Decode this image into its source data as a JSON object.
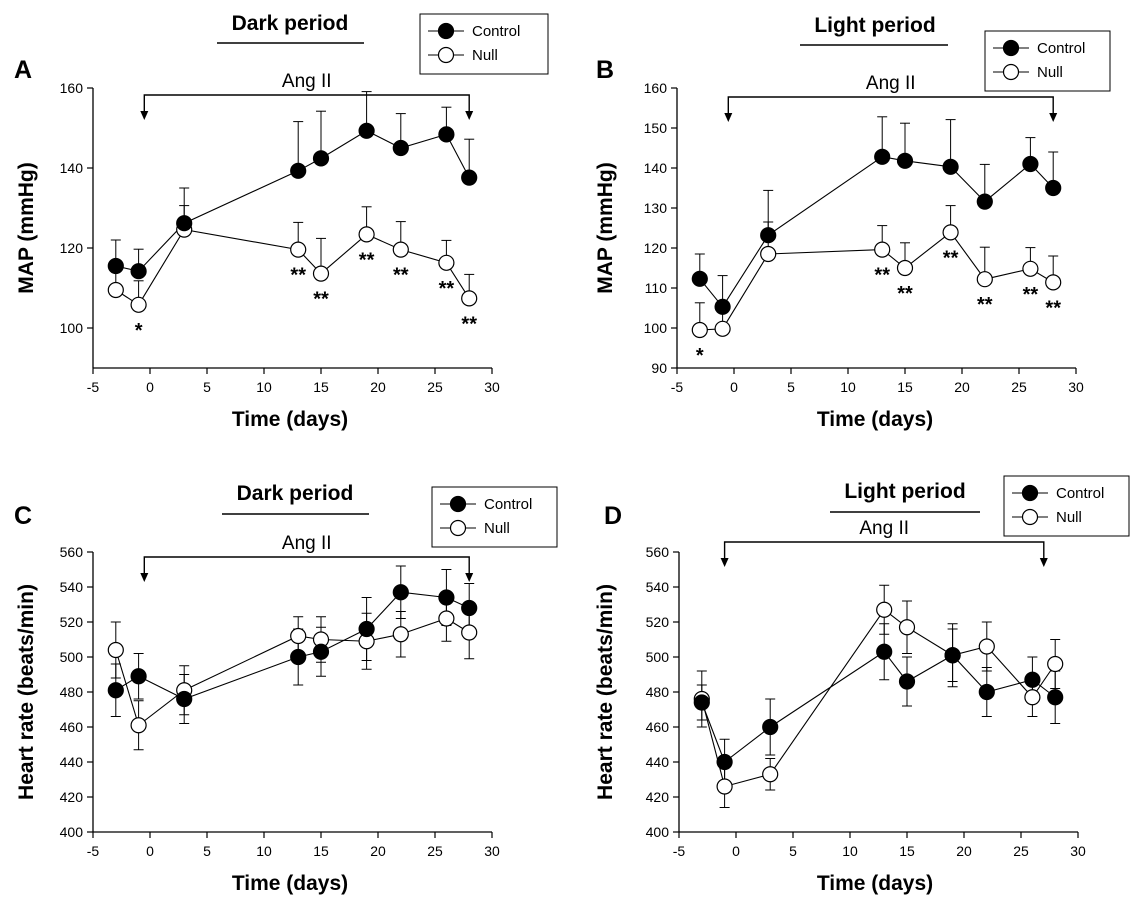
{
  "chart_data": [
    {
      "type": "line",
      "panel_label": "A",
      "title": "Dark period",
      "annotation": "Ang II",
      "annotation_range": [
        -0.5,
        28
      ],
      "xlabel": "Time (days)",
      "ylabel": "MAP (mmHg)",
      "xlim": [
        -5,
        30
      ],
      "ylim": [
        90,
        160
      ],
      "xticks": [
        -5,
        0,
        5,
        10,
        15,
        20,
        25,
        30
      ],
      "yticks": [
        100,
        120,
        140,
        160
      ],
      "legend_position": "top-right",
      "series": [
        {
          "name": "Control",
          "marker": "filled",
          "x": [
            -3,
            -1,
            3,
            13,
            15,
            19,
            22,
            26,
            28
          ],
          "y": [
            115.5,
            114.2,
            126.2,
            139.3,
            142.4,
            149.3,
            145.0,
            148.4,
            137.6
          ],
          "err": [
            6.5,
            5.5,
            8.8,
            12.3,
            11.8,
            9.8,
            8.6,
            6.8,
            9.6
          ]
        },
        {
          "name": "Null",
          "marker": "open",
          "x": [
            -3,
            -1,
            3,
            13,
            15,
            19,
            22,
            26,
            28
          ],
          "y": [
            109.5,
            105.8,
            124.6,
            119.6,
            113.6,
            123.4,
            119.6,
            116.3,
            107.4
          ],
          "err": [
            4.8,
            6.0,
            6.0,
            6.8,
            8.8,
            6.9,
            7.0,
            5.6,
            6.0
          ]
        }
      ],
      "significance": [
        {
          "x": -1,
          "label": "*"
        },
        {
          "x": 13,
          "label": "**"
        },
        {
          "x": 15,
          "label": "**"
        },
        {
          "x": 19,
          "label": "**"
        },
        {
          "x": 22,
          "label": "**"
        },
        {
          "x": 26,
          "label": "**"
        },
        {
          "x": 28,
          "label": "**"
        }
      ]
    },
    {
      "type": "line",
      "panel_label": "B",
      "title": "Light period",
      "annotation": "Ang II",
      "annotation_range": [
        -0.5,
        28
      ],
      "xlabel": "Time (days)",
      "ylabel": "MAP (mmHg)",
      "xlim": [
        -5,
        30
      ],
      "ylim": [
        90,
        160
      ],
      "xticks": [
        -5,
        0,
        5,
        10,
        15,
        20,
        25,
        30
      ],
      "yticks": [
        90,
        100,
        110,
        120,
        130,
        140,
        150,
        160
      ],
      "legend_position": "top-right",
      "series": [
        {
          "name": "Control",
          "marker": "filled",
          "x": [
            -3,
            -1,
            3,
            13,
            15,
            19,
            22,
            26,
            28
          ],
          "y": [
            112.3,
            105.3,
            123.2,
            142.8,
            141.8,
            140.3,
            131.6,
            141.0,
            135.0
          ],
          "err": [
            6.2,
            7.8,
            11.2,
            10.0,
            9.4,
            11.8,
            9.3,
            6.6,
            9.0
          ]
        },
        {
          "name": "Null",
          "marker": "open",
          "x": [
            -3,
            -1,
            3,
            13,
            15,
            19,
            22,
            26,
            28
          ],
          "y": [
            99.5,
            99.8,
            118.5,
            119.6,
            115.0,
            123.9,
            112.2,
            114.8,
            111.4
          ],
          "err": [
            6.8,
            7.0,
            8.0,
            6.0,
            6.3,
            6.7,
            8.0,
            5.3,
            6.6
          ]
        }
      ],
      "significance": [
        {
          "x": -3,
          "label": "*"
        },
        {
          "x": 13,
          "label": "**"
        },
        {
          "x": 15,
          "label": "**"
        },
        {
          "x": 19,
          "label": "**"
        },
        {
          "x": 22,
          "label": "**"
        },
        {
          "x": 26,
          "label": "**"
        },
        {
          "x": 28,
          "label": "**"
        }
      ]
    },
    {
      "type": "line",
      "panel_label": "C",
      "title": "Dark period",
      "annotation": "Ang II",
      "annotation_range": [
        -0.5,
        28
      ],
      "xlabel": "Time (days)",
      "ylabel": "Heart rate (beats/min)",
      "xlim": [
        -5,
        30
      ],
      "ylim": [
        400,
        560
      ],
      "xticks": [
        -5,
        0,
        5,
        10,
        15,
        20,
        25,
        30
      ],
      "yticks": [
        400,
        420,
        440,
        460,
        480,
        500,
        520,
        540,
        560
      ],
      "legend_position": "top-right",
      "series": [
        {
          "name": "Control",
          "marker": "filled",
          "x": [
            -3,
            -1,
            3,
            13,
            15,
            19,
            22,
            26,
            28
          ],
          "y": [
            481,
            489,
            476,
            500,
            503,
            516,
            537,
            534,
            528
          ],
          "err": [
            15,
            13,
            14,
            16,
            14,
            18,
            15,
            16,
            14
          ]
        },
        {
          "name": "Null",
          "marker": "open",
          "x": [
            -3,
            -1,
            3,
            13,
            15,
            19,
            22,
            26,
            28
          ],
          "y": [
            504,
            461,
            481,
            512,
            510,
            509,
            513,
            522,
            514
          ],
          "err": [
            16,
            14,
            14,
            11,
            13,
            16,
            13,
            13,
            15
          ]
        }
      ],
      "significance": []
    },
    {
      "type": "line",
      "panel_label": "D",
      "title": "Light period",
      "annotation": "Ang II",
      "annotation_range": [
        -1,
        27
      ],
      "xlabel": "Time (days)",
      "ylabel": "Heart rate (beats/min)",
      "xlim": [
        -5,
        30
      ],
      "ylim": [
        400,
        560
      ],
      "xticks": [
        -5,
        0,
        5,
        10,
        15,
        20,
        25,
        30
      ],
      "yticks": [
        400,
        420,
        440,
        460,
        480,
        500,
        520,
        540,
        560
      ],
      "legend_position": "top-right",
      "series": [
        {
          "name": "Control",
          "marker": "filled",
          "x": [
            -3,
            -1,
            3,
            13,
            15,
            19,
            22,
            26,
            28
          ],
          "y": [
            474,
            440,
            460,
            503,
            486,
            501,
            480,
            487,
            477
          ],
          "err": [
            10,
            13,
            16,
            16,
            14,
            18,
            14,
            13,
            15
          ]
        },
        {
          "name": "Null",
          "marker": "open",
          "x": [
            -3,
            -1,
            3,
            13,
            15,
            19,
            22,
            26,
            28
          ],
          "y": [
            476,
            426,
            433,
            527,
            517,
            501,
            506,
            477,
            496
          ],
          "err": [
            16,
            12,
            9,
            14,
            15,
            15,
            14,
            11,
            14
          ]
        }
      ],
      "significance": []
    }
  ]
}
